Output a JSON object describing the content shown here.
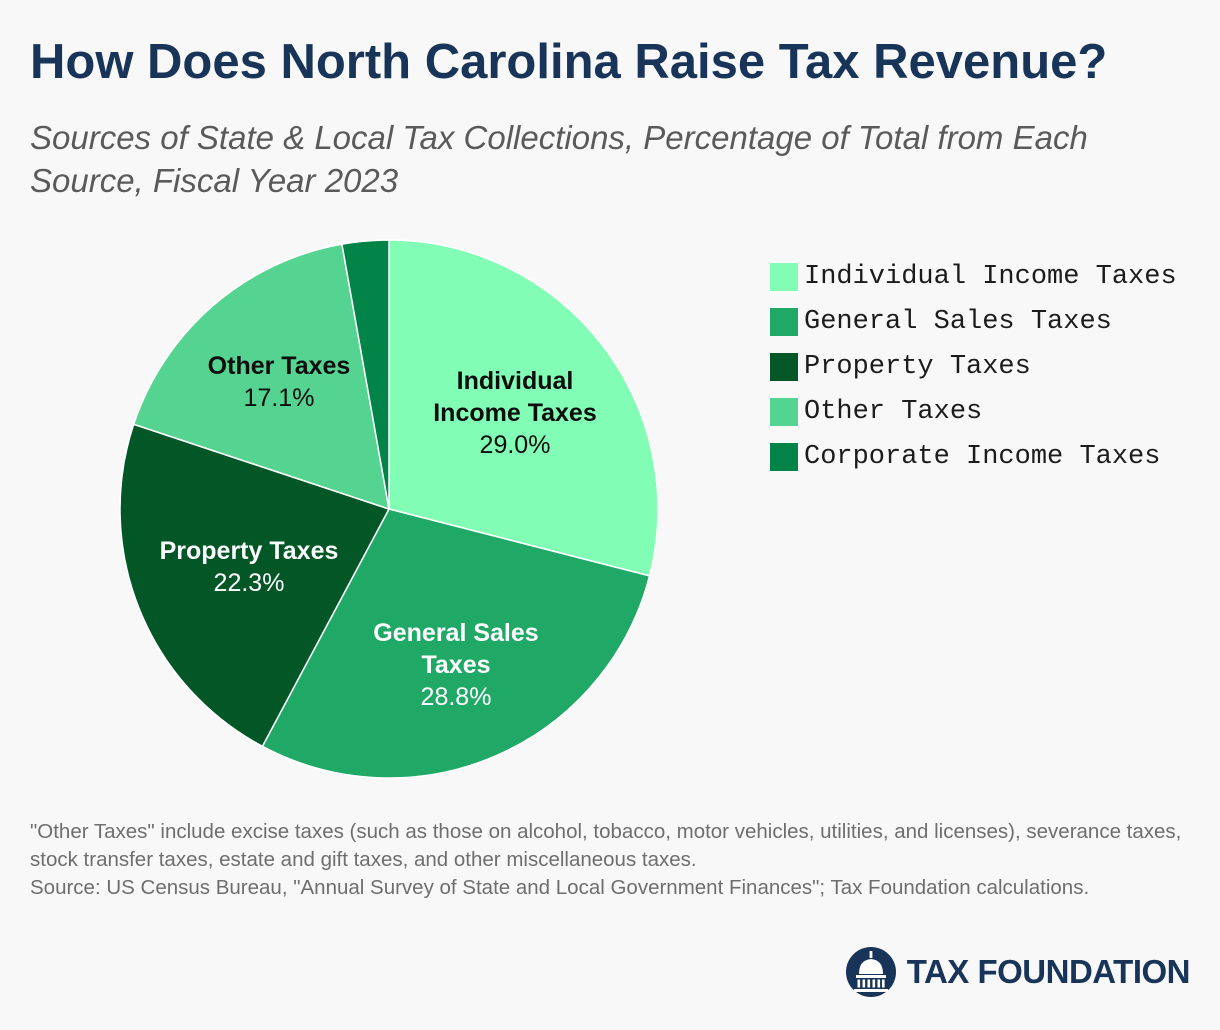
{
  "header": {
    "title": "How Does North Carolina Raise Tax Revenue?",
    "subtitle": "Sources of State & Local Tax Collections, Percentage of Total from Each Source, Fiscal Year 2023"
  },
  "chart_data": {
    "type": "pie",
    "title": "How Does North Carolina Raise Tax Revenue?",
    "subtitle": "Sources of State & Local Tax Collections, Percentage of Total from Each Source, Fiscal Year 2023",
    "legend_position": "right",
    "slices": [
      {
        "name": "Individual Income Taxes",
        "label_lines": [
          "Individual",
          "Income Taxes"
        ],
        "value": 29.0,
        "value_label": "29.0%",
        "color": "#82fdb5",
        "text_color": "#0d0d0d",
        "show_label": true
      },
      {
        "name": "General Sales Taxes",
        "label_lines": [
          "General Sales",
          "Taxes"
        ],
        "value": 28.8,
        "value_label": "28.8%",
        "color": "#1fa866",
        "text_color": "#ffffff",
        "show_label": true
      },
      {
        "name": "Property Taxes",
        "label_lines": [
          "Property Taxes"
        ],
        "value": 22.3,
        "value_label": "22.3%",
        "color": "#035726",
        "text_color": "#ffffff",
        "show_label": true
      },
      {
        "name": "Other Taxes",
        "label_lines": [
          "Other Taxes"
        ],
        "value": 17.1,
        "value_label": "17.1%",
        "color": "#54d490",
        "text_color": "#0d0d0d",
        "show_label": true
      },
      {
        "name": "Corporate Income Taxes",
        "label_lines": [],
        "value": 2.8,
        "value_label": "",
        "color": "#028347",
        "text_color": "#ffffff",
        "show_label": false
      }
    ]
  },
  "legend": {
    "items": [
      {
        "label": "Individual Income Taxes",
        "color": "#82fdb5"
      },
      {
        "label": "General Sales Taxes",
        "color": "#1fa866"
      },
      {
        "label": "Property Taxes",
        "color": "#035726"
      },
      {
        "label": "Other Taxes",
        "color": "#54d490"
      },
      {
        "label": "Corporate Income Taxes",
        "color": "#028347"
      }
    ]
  },
  "footnote": {
    "note": "\"Other Taxes\" include excise taxes (such as those on alcohol, tobacco, motor vehicles, utilities, and licenses), severance taxes, stock transfer taxes, estate and gift taxes, and other miscellaneous taxes.",
    "source": "Source: US Census Bureau, \"Annual Survey of State and Local Government Finances\"; Tax Foundation calculations."
  },
  "brand": {
    "name": "TAX FOUNDATION",
    "logo_icon": "capitol-dome-icon",
    "color": "#183458"
  }
}
